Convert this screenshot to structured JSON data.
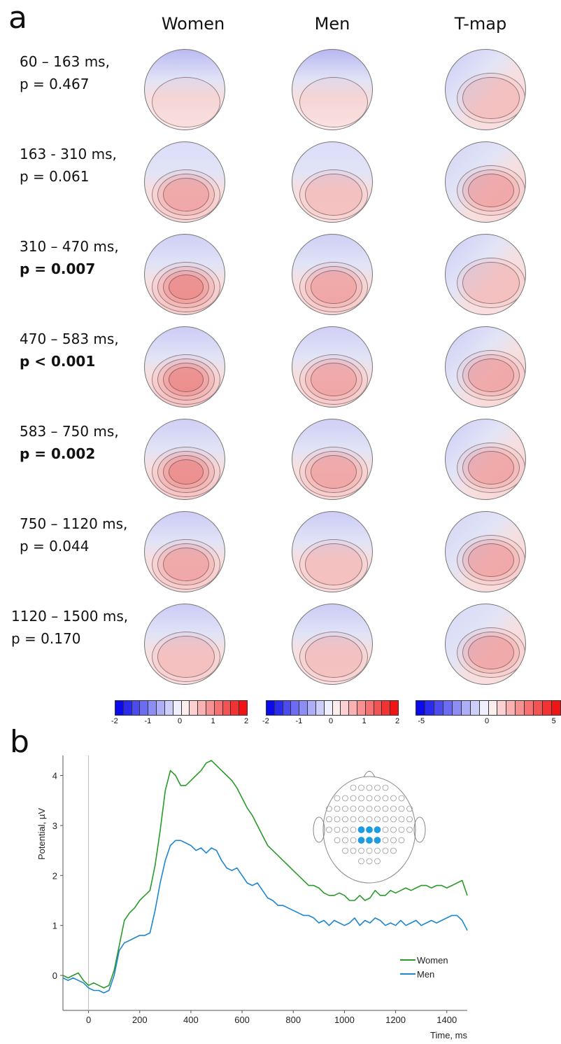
{
  "panel_a": {
    "letter": "a",
    "columns": [
      "Women",
      "Men",
      "T-map"
    ],
    "rows": [
      {
        "time": "60 – 163 ms,",
        "p": "p = 0.467",
        "bold": false,
        "w": [
          0.55,
          0.15
        ],
        "m": [
          0.6,
          0.1
        ],
        "t": [
          0.35,
          0.45
        ]
      },
      {
        "time": "163 - 310  ms,",
        "p": "p = 0.061",
        "bold": false,
        "w": [
          0.15,
          0.55
        ],
        "m": [
          0.15,
          0.4
        ],
        "t": [
          0.25,
          0.6
        ]
      },
      {
        "time": "310 – 470 ms,",
        "p": "p = 0.007",
        "bold": true,
        "w": [
          0.3,
          0.75
        ],
        "m": [
          0.3,
          0.6
        ],
        "t": [
          0.35,
          0.45
        ]
      },
      {
        "time": "470 – 583 ms,",
        "p": "p < 0.001",
        "bold": true,
        "w": [
          0.35,
          0.85
        ],
        "m": [
          0.3,
          0.6
        ],
        "t": [
          0.35,
          0.65
        ]
      },
      {
        "time": "583 – 750 ms,",
        "p": "p = 0.002",
        "bold": true,
        "w": [
          0.3,
          0.75
        ],
        "m": [
          0.3,
          0.55
        ],
        "t": [
          0.35,
          0.65
        ]
      },
      {
        "time": "750 – 1120 ms,",
        "p": "p = 0.044",
        "bold": false,
        "w": [
          0.35,
          0.55
        ],
        "m": [
          0.35,
          0.45
        ],
        "t": [
          0.25,
          0.55
        ]
      },
      {
        "time": "1120 – 1500 ms,",
        "p": "p = 0.170",
        "bold": false,
        "w": [
          0.35,
          0.45
        ],
        "m": [
          0.35,
          0.4
        ],
        "t": [
          0.2,
          0.5
        ]
      }
    ],
    "colorbars": [
      {
        "ticks": [
          "-2",
          "-1",
          "0",
          "1",
          "2"
        ]
      },
      {
        "ticks": [
          "-2",
          "-1",
          "0",
          "1",
          "2"
        ]
      },
      {
        "ticks": [
          "-5",
          "0",
          "5"
        ]
      }
    ]
  },
  "panel_b": {
    "letter": "b",
    "chart_data": {
      "type": "line",
      "xlabel": "Time, ms",
      "ylabel": "Potential, µV",
      "xlim": [
        -100,
        1480
      ],
      "ylim": [
        -0.7,
        4.4
      ],
      "xticks": [
        0,
        200,
        400,
        600,
        800,
        1000,
        1200,
        1400
      ],
      "yticks": [
        0,
        1,
        2,
        3,
        4
      ],
      "legend_position": "bottom-right",
      "series": [
        {
          "name": "Women",
          "color": "#2a9a2a",
          "x": [
            -100,
            -80,
            -60,
            -40,
            -20,
            0,
            20,
            40,
            60,
            80,
            100,
            120,
            140,
            160,
            180,
            200,
            220,
            240,
            260,
            280,
            300,
            320,
            340,
            360,
            380,
            400,
            420,
            440,
            460,
            480,
            500,
            520,
            540,
            560,
            580,
            600,
            620,
            640,
            660,
            680,
            700,
            720,
            740,
            760,
            780,
            800,
            820,
            840,
            860,
            880,
            900,
            920,
            940,
            960,
            980,
            1000,
            1020,
            1040,
            1060,
            1080,
            1100,
            1120,
            1140,
            1160,
            1180,
            1200,
            1220,
            1240,
            1260,
            1280,
            1300,
            1320,
            1340,
            1360,
            1380,
            1400,
            1420,
            1440,
            1460,
            1480
          ],
          "y": [
            0.0,
            -0.05,
            0.0,
            0.05,
            -0.1,
            -0.2,
            -0.15,
            -0.2,
            -0.25,
            -0.2,
            0.1,
            0.6,
            1.1,
            1.25,
            1.35,
            1.5,
            1.6,
            1.7,
            2.2,
            2.9,
            3.7,
            4.1,
            4.0,
            3.8,
            3.8,
            3.9,
            4.0,
            4.1,
            4.25,
            4.3,
            4.2,
            4.1,
            4.0,
            3.9,
            3.75,
            3.55,
            3.35,
            3.2,
            3.0,
            2.8,
            2.6,
            2.5,
            2.4,
            2.3,
            2.2,
            2.1,
            2.0,
            1.9,
            1.8,
            1.8,
            1.75,
            1.65,
            1.6,
            1.6,
            1.65,
            1.6,
            1.5,
            1.5,
            1.6,
            1.5,
            1.55,
            1.7,
            1.6,
            1.6,
            1.7,
            1.65,
            1.7,
            1.75,
            1.7,
            1.75,
            1.8,
            1.8,
            1.75,
            1.8,
            1.8,
            1.75,
            1.8,
            1.85,
            1.9,
            1.6
          ]
        },
        {
          "name": "Men",
          "color": "#1f86d0",
          "x": [
            -100,
            -80,
            -60,
            -40,
            -20,
            0,
            20,
            40,
            60,
            80,
            100,
            120,
            140,
            160,
            180,
            200,
            220,
            240,
            260,
            280,
            300,
            320,
            340,
            360,
            380,
            400,
            420,
            440,
            460,
            480,
            500,
            520,
            540,
            560,
            580,
            600,
            620,
            640,
            660,
            680,
            700,
            720,
            740,
            760,
            780,
            800,
            820,
            840,
            860,
            880,
            900,
            920,
            940,
            960,
            980,
            1000,
            1020,
            1040,
            1060,
            1080,
            1100,
            1120,
            1140,
            1160,
            1180,
            1200,
            1220,
            1240,
            1260,
            1280,
            1300,
            1320,
            1340,
            1360,
            1380,
            1400,
            1420,
            1440,
            1460,
            1480
          ],
          "y": [
            -0.05,
            -0.1,
            -0.05,
            -0.1,
            -0.15,
            -0.25,
            -0.3,
            -0.3,
            -0.35,
            -0.3,
            0.0,
            0.5,
            0.65,
            0.7,
            0.75,
            0.8,
            0.8,
            0.85,
            1.3,
            1.85,
            2.3,
            2.6,
            2.7,
            2.7,
            2.65,
            2.6,
            2.5,
            2.55,
            2.45,
            2.55,
            2.5,
            2.3,
            2.15,
            2.1,
            2.15,
            2.0,
            1.85,
            1.8,
            1.85,
            1.7,
            1.55,
            1.5,
            1.4,
            1.4,
            1.35,
            1.3,
            1.25,
            1.2,
            1.2,
            1.15,
            1.05,
            1.1,
            1.0,
            1.1,
            1.05,
            1.0,
            1.05,
            1.15,
            1.0,
            1.1,
            1.05,
            1.15,
            1.1,
            1.0,
            1.05,
            1.0,
            1.1,
            1.0,
            1.05,
            1.1,
            1.0,
            1.05,
            1.1,
            1.05,
            1.1,
            1.15,
            1.2,
            1.2,
            1.1,
            0.9
          ]
        }
      ]
    }
  },
  "colors": {
    "red": "#e85a5a",
    "blue": "#3b3bf0",
    "women": "#2a9a2a",
    "men": "#1f86d0"
  }
}
